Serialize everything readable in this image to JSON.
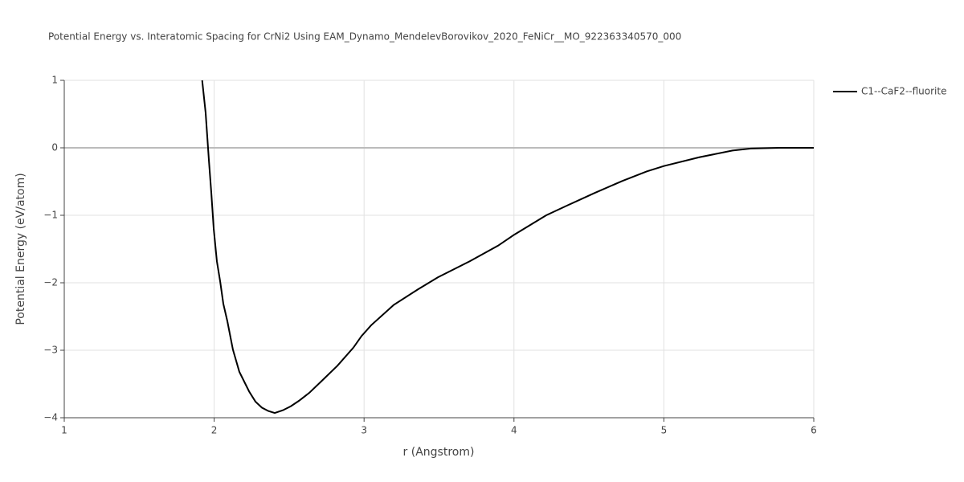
{
  "chart_data": {
    "type": "line",
    "title": "Potential Energy vs. Interatomic Spacing for CrNi2 Using EAM_Dynamo_MendelevBorovikov_2020_FeNiCr__MO_922363340570_000",
    "x_label": "r (Angstrom)",
    "y_label": "Potential Energy (eV/atom)",
    "x": [
      1.92,
      1.943,
      1.965,
      1.981,
      1.997,
      2.018,
      2.04,
      2.061,
      2.088,
      2.125,
      2.168,
      2.233,
      2.275,
      2.318,
      2.361,
      2.404,
      2.458,
      2.511,
      2.565,
      2.635,
      2.715,
      2.822,
      2.929,
      2.983,
      3.047,
      3.197,
      3.358,
      3.492,
      3.706,
      3.894,
      4.0,
      4.215,
      4.36,
      4.537,
      4.724,
      4.885,
      5.0,
      5.236,
      5.458,
      5.58,
      5.77,
      6.0
    ],
    "series": [
      {
        "name": "C1--CaF2--fluorite",
        "color": "#000000",
        "values": [
          1.0,
          0.52,
          -0.19,
          -0.67,
          -1.2,
          -1.68,
          -1.98,
          -2.31,
          -2.57,
          -2.99,
          -3.32,
          -3.61,
          -3.76,
          -3.85,
          -3.9,
          -3.93,
          -3.89,
          -3.83,
          -3.75,
          -3.63,
          -3.46,
          -3.23,
          -2.96,
          -2.79,
          -2.63,
          -2.33,
          -2.1,
          -1.92,
          -1.68,
          -1.45,
          -1.29,
          -1.0,
          -0.85,
          -0.67,
          -0.49,
          -0.35,
          -0.27,
          -0.14,
          -0.04,
          -0.01,
          0.0,
          0.0
        ]
      }
    ],
    "xlim": [
      1,
      6
    ],
    "ylim": [
      -4,
      1
    ],
    "xticks": [
      1,
      2,
      3,
      4,
      5,
      6
    ],
    "yticks": [
      1,
      0,
      {
        "value": -1,
        "label": "−1"
      },
      {
        "value": -2,
        "label": "−2"
      },
      {
        "value": -3,
        "label": "−3"
      },
      {
        "value": -4,
        "label": "−4"
      }
    ],
    "grid": true,
    "legend": "right"
  }
}
